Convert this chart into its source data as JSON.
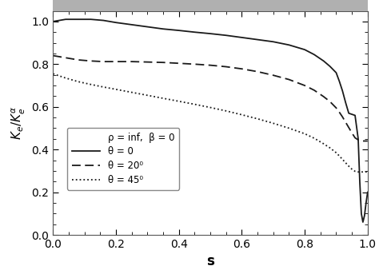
{
  "title": "",
  "xlabel": "s",
  "xlim": [
    0.0,
    1.0
  ],
  "ylim": [
    0.0,
    1.05
  ],
  "legend_label_header": "ρ = inf,  β = 0",
  "legend_label_0": "θ = 0",
  "legend_label_20": "θ = 20⁰",
  "legend_label_45": "θ = 45⁰",
  "background_color": "#ffffff",
  "line_color": "#1a1a1a",
  "curve0_x": [
    0.0,
    0.04,
    0.08,
    0.12,
    0.16,
    0.2,
    0.25,
    0.3,
    0.35,
    0.4,
    0.45,
    0.5,
    0.55,
    0.6,
    0.65,
    0.7,
    0.75,
    0.8,
    0.83,
    0.86,
    0.88,
    0.9,
    0.91,
    0.92,
    0.93,
    0.94,
    0.95,
    0.96,
    0.97,
    0.975,
    0.98,
    0.985,
    0.99,
    0.995,
    1.0
  ],
  "curve0_y": [
    1.0,
    1.01,
    1.01,
    1.01,
    1.005,
    0.995,
    0.985,
    0.975,
    0.965,
    0.958,
    0.95,
    0.943,
    0.935,
    0.925,
    0.915,
    0.905,
    0.89,
    0.868,
    0.845,
    0.815,
    0.79,
    0.76,
    0.72,
    0.675,
    0.62,
    0.57,
    0.565,
    0.56,
    0.45,
    0.25,
    0.1,
    0.06,
    0.09,
    0.15,
    0.2
  ],
  "curve20_x": [
    0.0,
    0.04,
    0.08,
    0.12,
    0.16,
    0.2,
    0.25,
    0.3,
    0.35,
    0.4,
    0.45,
    0.5,
    0.55,
    0.6,
    0.65,
    0.7,
    0.75,
    0.8,
    0.83,
    0.86,
    0.88,
    0.9,
    0.91,
    0.92,
    0.93,
    0.94,
    0.95,
    0.96,
    0.97,
    0.98,
    0.99,
    1.0
  ],
  "curve20_y": [
    0.84,
    0.83,
    0.82,
    0.815,
    0.812,
    0.812,
    0.812,
    0.81,
    0.808,
    0.804,
    0.8,
    0.795,
    0.788,
    0.778,
    0.765,
    0.748,
    0.728,
    0.7,
    0.678,
    0.648,
    0.625,
    0.595,
    0.575,
    0.553,
    0.528,
    0.503,
    0.478,
    0.455,
    0.445,
    0.44,
    0.44,
    0.44
  ],
  "curve45_x": [
    0.0,
    0.04,
    0.08,
    0.12,
    0.16,
    0.2,
    0.25,
    0.3,
    0.35,
    0.4,
    0.45,
    0.5,
    0.55,
    0.6,
    0.65,
    0.7,
    0.75,
    0.8,
    0.83,
    0.86,
    0.88,
    0.9,
    0.91,
    0.92,
    0.93,
    0.94,
    0.95,
    0.96,
    0.97,
    0.98,
    0.99,
    1.0
  ],
  "curve45_y": [
    0.755,
    0.735,
    0.718,
    0.705,
    0.693,
    0.682,
    0.668,
    0.654,
    0.64,
    0.626,
    0.612,
    0.597,
    0.581,
    0.563,
    0.544,
    0.523,
    0.5,
    0.474,
    0.453,
    0.427,
    0.408,
    0.385,
    0.37,
    0.354,
    0.338,
    0.322,
    0.308,
    0.298,
    0.295,
    0.295,
    0.295,
    0.295
  ],
  "top_band_color": "#b0b0b0",
  "minor_tick_count": 4
}
